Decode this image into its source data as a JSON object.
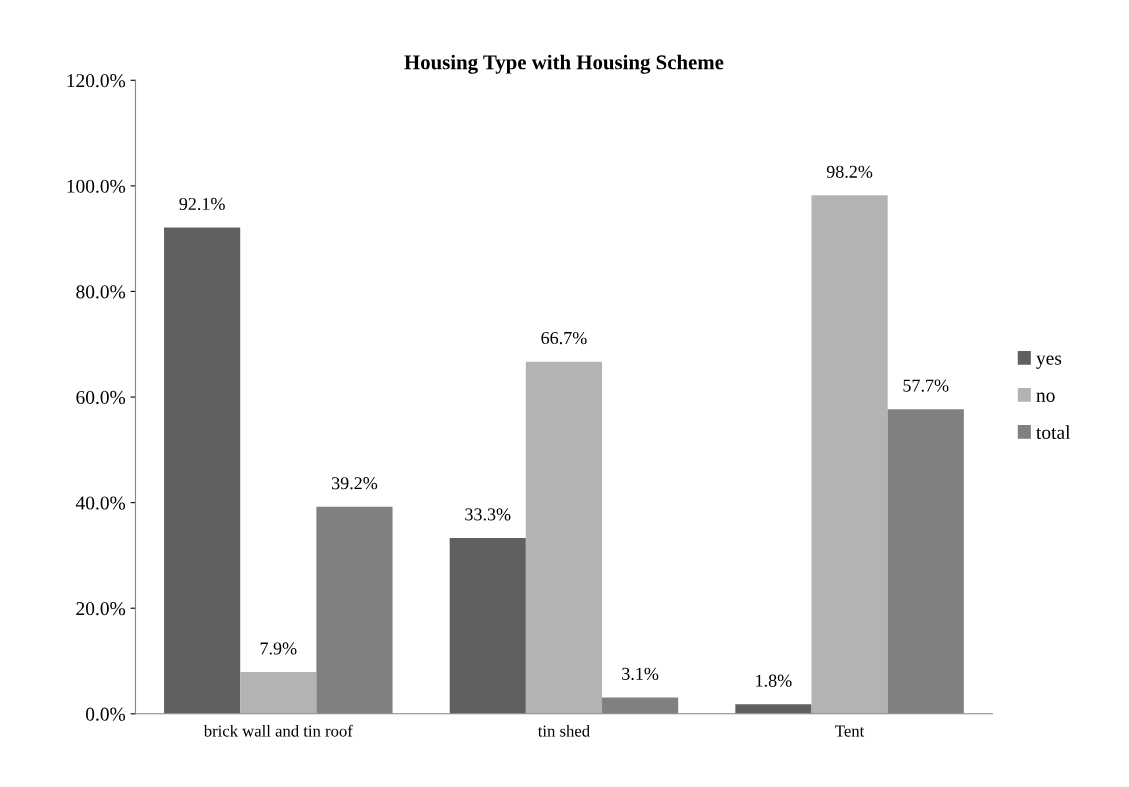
{
  "chart_data": {
    "type": "bar",
    "title": "Housing Type with Housing Scheme",
    "categories": [
      "brick wall and tin roof",
      "tin shed",
      "Tent"
    ],
    "series": [
      {
        "name": "yes",
        "color": "#606060",
        "values": [
          92.1,
          33.3,
          1.8
        ],
        "value_labels": [
          "92.1%",
          "33.3%",
          "1.8%"
        ]
      },
      {
        "name": "no",
        "color": "#b3b3b3",
        "values": [
          7.9,
          66.7,
          98.2
        ],
        "value_labels": [
          "7.9%",
          "66.7%",
          "98.2%"
        ]
      },
      {
        "name": "total",
        "color": "#808080",
        "values": [
          39.2,
          3.1,
          57.7
        ],
        "value_labels": [
          "39.2%",
          "3.1%",
          "57.7%"
        ]
      }
    ],
    "ylim": [
      0,
      120
    ],
    "yticks": [
      {
        "value": 0,
        "label": "0.0%"
      },
      {
        "value": 20,
        "label": "20.0%"
      },
      {
        "value": 40,
        "label": "40.0%"
      },
      {
        "value": 60,
        "label": "60.0%"
      },
      {
        "value": 80,
        "label": "80.0%"
      },
      {
        "value": 100,
        "label": "100.0%"
      },
      {
        "value": 120,
        "label": "120.0%"
      }
    ],
    "grid": false,
    "legend": "right"
  }
}
